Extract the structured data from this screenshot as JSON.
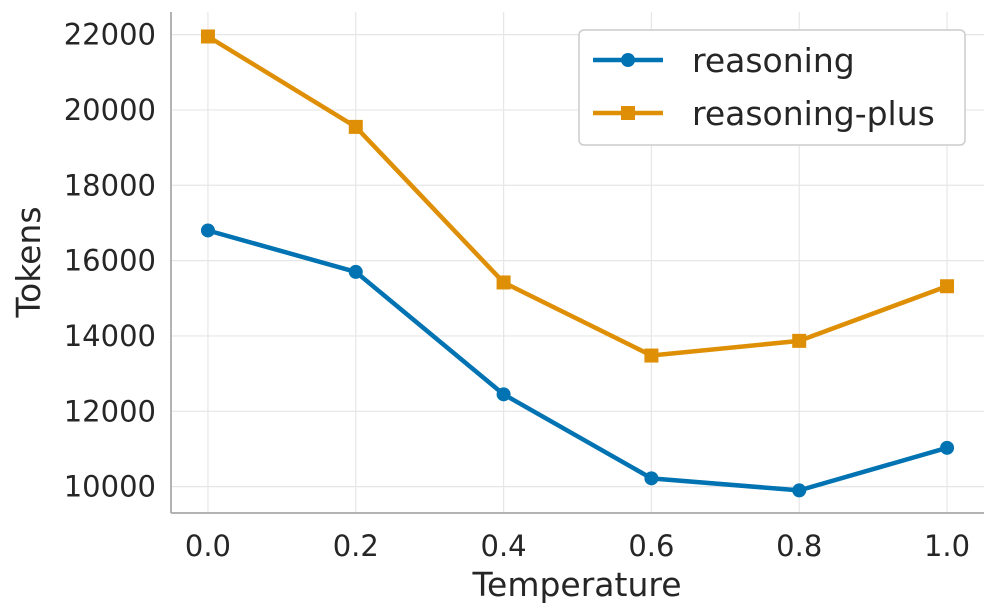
{
  "chart_data": {
    "type": "line",
    "title": "",
    "xlabel": "Temperature",
    "ylabel": "Tokens",
    "x": [
      0.0,
      0.2,
      0.4,
      0.6,
      0.8,
      1.0
    ],
    "x_tick_labels": [
      "0.0",
      "0.2",
      "0.4",
      "0.6",
      "0.8",
      "1.0"
    ],
    "y_ticks": [
      10000,
      12000,
      14000,
      16000,
      18000,
      20000,
      22000
    ],
    "y_tick_labels": [
      "10000",
      "12000",
      "14000",
      "16000",
      "18000",
      "20000",
      "22000"
    ],
    "xlim": [
      -0.05,
      1.05
    ],
    "ylim": [
      9300,
      22600
    ],
    "grid": true,
    "legend_position": "top-right",
    "series": [
      {
        "name": "reasoning",
        "color": "#0173b2",
        "marker": "circle",
        "values": [
          16800,
          15700,
          12450,
          10220,
          9900,
          11030
        ]
      },
      {
        "name": "reasoning-plus",
        "color": "#de8f05",
        "marker": "square",
        "values": [
          21950,
          19550,
          15420,
          13480,
          13870,
          15320
        ]
      }
    ]
  }
}
